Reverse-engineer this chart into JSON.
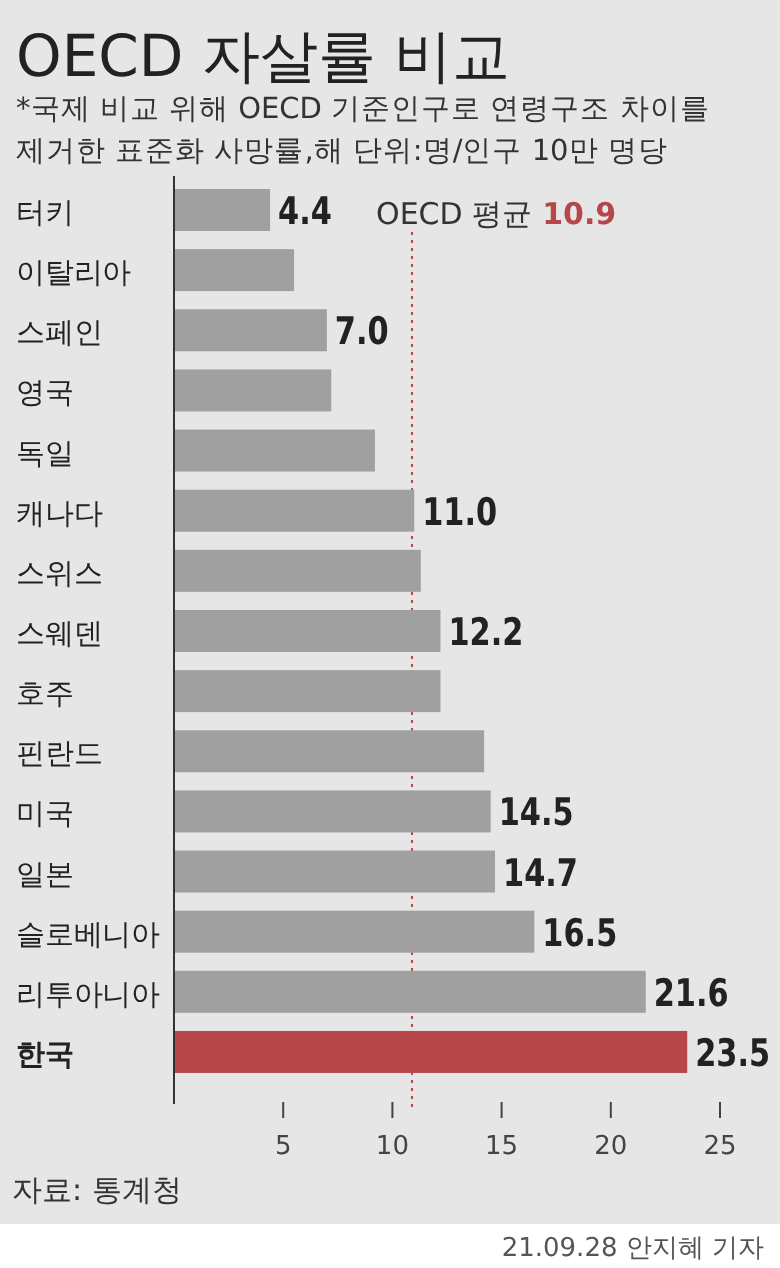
{
  "chart_data": {
    "type": "bar",
    "orientation": "horizontal",
    "title": "OECD 자살률 비교",
    "subtitle": "*국제 비교 위해 OECD 기준인구로 연령구조 차이를 제거한 표준화 사망률,해 단위:명/인구 10만 명당",
    "categories": [
      "터키",
      "이탈리아",
      "스페인",
      "영국",
      "독일",
      "캐나다",
      "스위스",
      "스웨덴",
      "호주",
      "핀란드",
      "미국",
      "일본",
      "슬로베니아",
      "리투아니아",
      "한국"
    ],
    "values": [
      4.4,
      5.5,
      7.0,
      7.2,
      9.2,
      11.0,
      11.3,
      12.2,
      12.2,
      14.2,
      14.5,
      14.7,
      16.5,
      21.6,
      23.5
    ],
    "value_labels": [
      "4.4",
      null,
      "7.0",
      null,
      null,
      "11.0",
      null,
      "12.2",
      null,
      null,
      "14.5",
      "14.7",
      "16.5",
      "21.6",
      "23.5"
    ],
    "colors": [
      "#a0a0a0",
      "#a0a0a0",
      "#a0a0a0",
      "#a0a0a0",
      "#a0a0a0",
      "#a0a0a0",
      "#a0a0a0",
      "#a0a0a0",
      "#a0a0a0",
      "#a0a0a0",
      "#a0a0a0",
      "#a0a0a0",
      "#a0a0a0",
      "#a0a0a0",
      "#b5474b"
    ],
    "xlim": [
      0,
      25
    ],
    "xticks": [
      5,
      10,
      15,
      20,
      25
    ],
    "grid": false,
    "ref_lines": [
      {
        "axis": "x",
        "value": 10.9,
        "label": "OECD 평균 10.9",
        "color": "#b5474b",
        "line_style": "dotted"
      }
    ],
    "annotations": [
      "자료: 통계청",
      "21.09.28 안지혜 기자"
    ]
  }
}
